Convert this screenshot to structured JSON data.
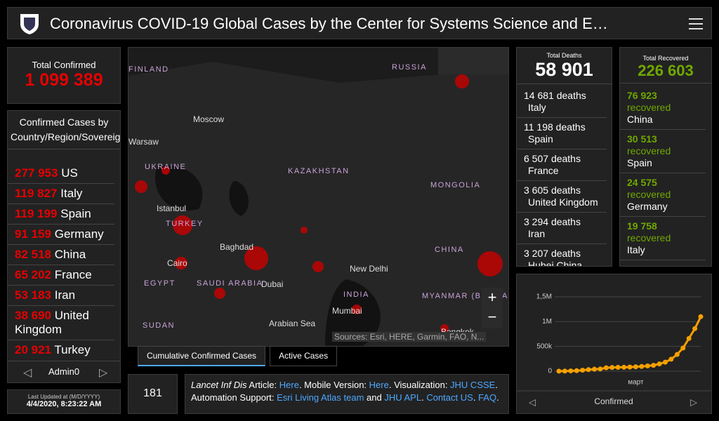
{
  "header": {
    "title": "Coronavirus COVID-19 Global Cases by the Center for Systems Science and E…"
  },
  "confirmed": {
    "label": "Total Confirmed",
    "value": "1 099 389"
  },
  "by_country": {
    "title": "Confirmed Cases by Country/Region/Sovereignty",
    "rows": [
      {
        "value": "277 953",
        "name": "US"
      },
      {
        "value": "119 827",
        "name": "Italy"
      },
      {
        "value": "119 199",
        "name": "Spain"
      },
      {
        "value": "91 159",
        "name": "Germany"
      },
      {
        "value": "82 518",
        "name": "China"
      },
      {
        "value": "65 202",
        "name": "France"
      },
      {
        "value": "53 183",
        "name": "Iran"
      },
      {
        "value": "38 690",
        "name": "United Kingdom"
      },
      {
        "value": "20 921",
        "name": "Turkey"
      }
    ],
    "nav": "Admin0"
  },
  "updated": {
    "label": "Last Updated at (M/D/YYYY)",
    "value": "4/4/2020, 8:23:22 AM"
  },
  "map": {
    "labels": [
      "FINLAND",
      "RUSSIA",
      "Moscow",
      "Warsaw",
      "UKRAINE",
      "KAZAKHSTAN",
      "MONGOLIA",
      "Istanbul",
      "TURKEY",
      "Baghdad",
      "Cairo",
      "EGYPT",
      "SAUDI ARABIA",
      "Dubai",
      "New Delhi",
      "INDIA",
      "CHINA",
      "MYANMAR (BURMA)",
      "Mumbai",
      "SUDAN",
      "Arabian Sea",
      "Bangkok"
    ],
    "attribution": "Sources: Esri, HERE, Garmin, FAO, N..."
  },
  "tabs": [
    "Cumulative Confirmed Cases",
    "Active Cases"
  ],
  "countries": {
    "value": "181"
  },
  "article": {
    "parts": [
      {
        "text": "Lancet Inf Dis",
        "style": "italic"
      },
      {
        "text": " Article: ",
        "style": "plain"
      },
      {
        "text": "Here",
        "style": "link"
      },
      {
        "text": ". Mobile Version: ",
        "style": "plain"
      },
      {
        "text": "Here",
        "style": "link"
      },
      {
        "text": ". Visualization: ",
        "style": "plain"
      },
      {
        "text": "JHU CSSE",
        "style": "link"
      },
      {
        "text": ". Automation Support: ",
        "style": "plain"
      },
      {
        "text": "Esri Living Atlas team",
        "style": "link"
      },
      {
        "text": " and ",
        "style": "plain"
      },
      {
        "text": "JHU APL",
        "style": "link"
      },
      {
        "text": ". ",
        "style": "plain"
      },
      {
        "text": "Contact US",
        "style": "link"
      },
      {
        "text": ". ",
        "style": "plain"
      },
      {
        "text": "FAQ",
        "style": "link"
      },
      {
        "text": ".",
        "style": "plain"
      }
    ]
  },
  "deaths": {
    "label": "Total Deaths",
    "value": "58 901",
    "rows": [
      {
        "value": "14 681",
        "unit": "deaths",
        "name": "Italy"
      },
      {
        "value": "11 198",
        "unit": "deaths",
        "name": "Spain"
      },
      {
        "value": "6 507",
        "unit": "deaths",
        "name": "France"
      },
      {
        "value": "3 605",
        "unit": "deaths",
        "name": "United Kingdom"
      },
      {
        "value": "3 294",
        "unit": "deaths",
        "name": "Iran"
      },
      {
        "value": "3 207",
        "unit": "deaths",
        "name": "Hubei China"
      }
    ]
  },
  "recovered": {
    "label": "Total Recovered",
    "value": "226 603",
    "rows": [
      {
        "value": "76 923",
        "unit": "recovered",
        "name": "China"
      },
      {
        "value": "30 513",
        "unit": "recovered",
        "name": "Spain"
      },
      {
        "value": "24 575",
        "unit": "recovered",
        "name": "Germany"
      },
      {
        "value": "19 758",
        "unit": "recovered",
        "name": "Italy"
      }
    ]
  },
  "chart_data": {
    "type": "line",
    "color": "#f5a000",
    "categories": [
      null,
      null,
      null,
      null,
      null,
      null,
      null,
      null,
      null,
      null,
      null,
      null,
      null,
      "март",
      null,
      null,
      null,
      null,
      null,
      null,
      null,
      null,
      null,
      null,
      null
    ],
    "values": [
      600,
      2000,
      6000,
      10000,
      20000,
      31000,
      40000,
      45000,
      69000,
      75000,
      77000,
      80000,
      83000,
      88000,
      95000,
      106000,
      119000,
      146000,
      182000,
      242000,
      337000,
      467000,
      660000,
      858000,
      1099389
    ],
    "ylim": [
      0,
      1500000
    ],
    "yticks": [
      0,
      {
        "value": 500000,
        "label": "500k"
      },
      {
        "value": 1000000,
        "label": "1M"
      },
      {
        "value": 1500000,
        "label": "1,5M"
      }
    ],
    "footer": "Confirmed"
  }
}
